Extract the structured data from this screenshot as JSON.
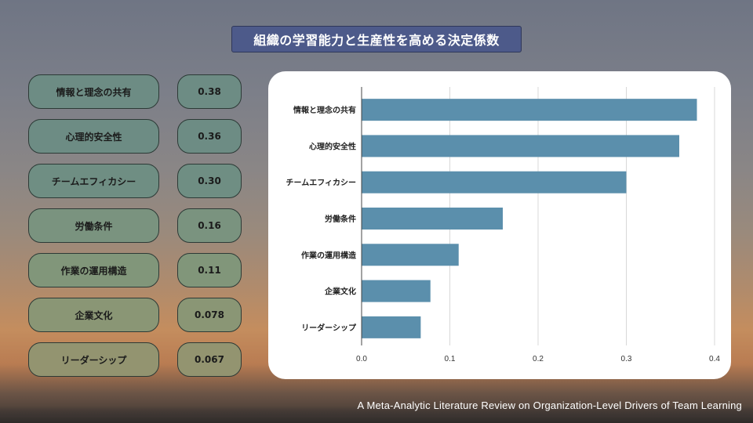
{
  "title": "組織の学習能力と生産性を高める決定係数",
  "items": [
    {
      "label": "情報と理念の共有",
      "value": "0.38"
    },
    {
      "label": "心理的安全性",
      "value": "0.36"
    },
    {
      "label": "チームエフィカシー",
      "value": "0.30"
    },
    {
      "label": "労働条件",
      "value": "0.16"
    },
    {
      "label": "作業の運用構造",
      "value": "0.11"
    },
    {
      "label": "企業文化",
      "value": "0.078"
    },
    {
      "label": "リーダーシップ",
      "value": "0.067"
    }
  ],
  "chart_data": {
    "type": "bar",
    "orientation": "horizontal",
    "categories": [
      "情報と理念の共有",
      "心理的安全性",
      "チームエフィカシー",
      "労働条件",
      "作業の運用構造",
      "企業文化",
      "リーダーシップ"
    ],
    "values": [
      0.38,
      0.36,
      0.3,
      0.16,
      0.11,
      0.078,
      0.067
    ],
    "xlim": [
      0,
      0.4
    ],
    "xticks": [
      "0.0",
      "0.1",
      "0.2",
      "0.3",
      "0.4"
    ],
    "grid": true,
    "bar_color": "#5b8fac"
  },
  "footer": "A Meta-Analytic Literature Review on Organization-Level Drivers of Team Learning",
  "colors": {
    "title_bg": "#4d5a8a",
    "pill_colors": [
      "#6d8c84",
      "#6d8c84",
      "#6f8e83",
      "#7a937f",
      "#81967a",
      "#8a9675",
      "#939470"
    ]
  }
}
